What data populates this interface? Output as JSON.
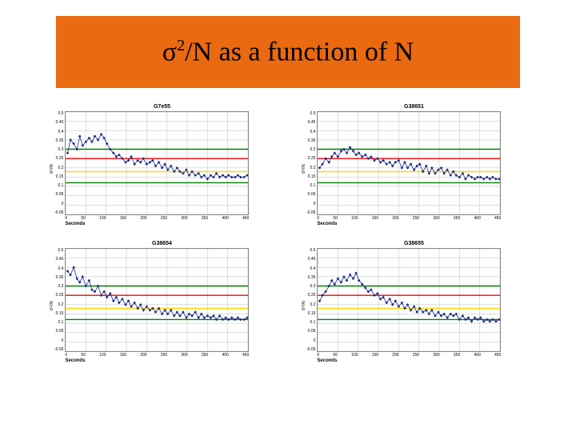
{
  "title": {
    "sigma": "σ",
    "exponent": "2",
    "rest": "/N as a function of N",
    "bg_color": "#e96a10"
  },
  "charts": [
    {
      "title": "G7e55",
      "type": "line",
      "xlabel": "Seconds",
      "ylabel": "σ²/N",
      "xlim": [
        0,
        450
      ],
      "ylim": [
        -0.05,
        0.5
      ],
      "xticks": [
        0,
        50,
        100,
        150,
        200,
        250,
        300,
        350,
        400,
        450
      ],
      "yticks": [
        -0.05,
        0,
        0.05,
        0.1,
        0.15,
        0.2,
        0.25,
        0.3,
        0.35,
        0.4,
        0.45,
        0.5
      ],
      "grid_color": "#bbbbbb",
      "background_color": "#ffffff",
      "hlines": [
        {
          "y": 0.3,
          "color": "#008000",
          "width": 1.5
        },
        {
          "y": 0.25,
          "color": "#ff0000",
          "width": 1.5
        },
        {
          "y": 0.18,
          "color": "#ffd700",
          "width": 1.5
        },
        {
          "y": 0.12,
          "color": "#008000",
          "width": 1.5
        }
      ],
      "series": {
        "color": "#1a2a8a",
        "marker_color": "#1a2a8a",
        "marker_size": 1.3,
        "line_width": 0.8,
        "data": [
          [
            5,
            0.28
          ],
          [
            12,
            0.35
          ],
          [
            20,
            0.33
          ],
          [
            28,
            0.3
          ],
          [
            35,
            0.37
          ],
          [
            42,
            0.32
          ],
          [
            50,
            0.34
          ],
          [
            58,
            0.36
          ],
          [
            65,
            0.34
          ],
          [
            72,
            0.37
          ],
          [
            80,
            0.35
          ],
          [
            88,
            0.38
          ],
          [
            95,
            0.36
          ],
          [
            102,
            0.33
          ],
          [
            110,
            0.3
          ],
          [
            118,
            0.28
          ],
          [
            125,
            0.26
          ],
          [
            132,
            0.27
          ],
          [
            140,
            0.25
          ],
          [
            148,
            0.23
          ],
          [
            155,
            0.24
          ],
          [
            162,
            0.26
          ],
          [
            170,
            0.22
          ],
          [
            178,
            0.24
          ],
          [
            185,
            0.23
          ],
          [
            192,
            0.25
          ],
          [
            200,
            0.22
          ],
          [
            208,
            0.23
          ],
          [
            215,
            0.24
          ],
          [
            222,
            0.21
          ],
          [
            230,
            0.23
          ],
          [
            238,
            0.2
          ],
          [
            245,
            0.22
          ],
          [
            252,
            0.19
          ],
          [
            260,
            0.21
          ],
          [
            268,
            0.18
          ],
          [
            275,
            0.2
          ],
          [
            282,
            0.18
          ],
          [
            290,
            0.17
          ],
          [
            298,
            0.19
          ],
          [
            305,
            0.16
          ],
          [
            312,
            0.18
          ],
          [
            320,
            0.16
          ],
          [
            328,
            0.17
          ],
          [
            335,
            0.15
          ],
          [
            342,
            0.16
          ],
          [
            350,
            0.14
          ],
          [
            358,
            0.16
          ],
          [
            365,
            0.15
          ],
          [
            372,
            0.17
          ],
          [
            380,
            0.15
          ],
          [
            388,
            0.16
          ],
          [
            395,
            0.15
          ],
          [
            402,
            0.16
          ],
          [
            410,
            0.15
          ],
          [
            418,
            0.15
          ],
          [
            425,
            0.16
          ],
          [
            432,
            0.15
          ],
          [
            440,
            0.15
          ],
          [
            448,
            0.16
          ]
        ]
      }
    },
    {
      "title": "G38651",
      "type": "line",
      "xlabel": "Seconds",
      "ylabel": "σ²/N",
      "xlim": [
        0,
        450
      ],
      "ylim": [
        -0.05,
        0.5
      ],
      "xticks": [
        0,
        50,
        100,
        150,
        200,
        250,
        300,
        350,
        400,
        450
      ],
      "yticks": [
        -0.05,
        0,
        0.05,
        0.1,
        0.15,
        0.2,
        0.25,
        0.3,
        0.35,
        0.4,
        0.45,
        0.5
      ],
      "grid_color": "#bbbbbb",
      "background_color": "#ffffff",
      "hlines": [
        {
          "y": 0.3,
          "color": "#008000",
          "width": 1.5
        },
        {
          "y": 0.25,
          "color": "#ff0000",
          "width": 1.5
        },
        {
          "y": 0.18,
          "color": "#ffd700",
          "width": 1.5
        },
        {
          "y": 0.12,
          "color": "#008000",
          "width": 1.5
        }
      ],
      "series": {
        "color": "#1a2a8a",
        "marker_color": "#1a2a8a",
        "marker_size": 1.3,
        "line_width": 0.8,
        "data": [
          [
            5,
            0.2
          ],
          [
            12,
            0.22
          ],
          [
            20,
            0.25
          ],
          [
            28,
            0.23
          ],
          [
            35,
            0.26
          ],
          [
            42,
            0.28
          ],
          [
            50,
            0.26
          ],
          [
            58,
            0.29
          ],
          [
            65,
            0.3
          ],
          [
            72,
            0.28
          ],
          [
            80,
            0.31
          ],
          [
            88,
            0.29
          ],
          [
            95,
            0.27
          ],
          [
            102,
            0.28
          ],
          [
            110,
            0.26
          ],
          [
            118,
            0.27
          ],
          [
            125,
            0.25
          ],
          [
            132,
            0.26
          ],
          [
            140,
            0.24
          ],
          [
            148,
            0.25
          ],
          [
            155,
            0.23
          ],
          [
            162,
            0.24
          ],
          [
            170,
            0.22
          ],
          [
            178,
            0.23
          ],
          [
            185,
            0.21
          ],
          [
            192,
            0.23
          ],
          [
            200,
            0.24
          ],
          [
            208,
            0.2
          ],
          [
            215,
            0.23
          ],
          [
            222,
            0.2
          ],
          [
            230,
            0.22
          ],
          [
            238,
            0.19
          ],
          [
            245,
            0.21
          ],
          [
            252,
            0.22
          ],
          [
            260,
            0.18
          ],
          [
            268,
            0.21
          ],
          [
            275,
            0.17
          ],
          [
            282,
            0.2
          ],
          [
            290,
            0.17
          ],
          [
            298,
            0.19
          ],
          [
            305,
            0.2
          ],
          [
            312,
            0.17
          ],
          [
            320,
            0.19
          ],
          [
            328,
            0.16
          ],
          [
            335,
            0.18
          ],
          [
            342,
            0.16
          ],
          [
            350,
            0.15
          ],
          [
            358,
            0.17
          ],
          [
            365,
            0.14
          ],
          [
            372,
            0.16
          ],
          [
            380,
            0.15
          ],
          [
            388,
            0.14
          ],
          [
            395,
            0.15
          ],
          [
            402,
            0.15
          ],
          [
            410,
            0.14
          ],
          [
            418,
            0.15
          ],
          [
            425,
            0.14
          ],
          [
            432,
            0.15
          ],
          [
            440,
            0.14
          ],
          [
            448,
            0.14
          ]
        ]
      }
    },
    {
      "title": "G38654",
      "type": "line",
      "xlabel": "Seconds",
      "ylabel": "σ²/N",
      "xlim": [
        0,
        450
      ],
      "ylim": [
        -0.05,
        0.5
      ],
      "xticks": [
        0,
        50,
        100,
        150,
        200,
        250,
        300,
        350,
        400,
        450
      ],
      "yticks": [
        -0.05,
        0,
        0.05,
        0.1,
        0.15,
        0.2,
        0.25,
        0.3,
        0.35,
        0.4,
        0.45,
        0.5
      ],
      "grid_color": "#bbbbbb",
      "background_color": "#ffffff",
      "hlines": [
        {
          "y": 0.3,
          "color": "#008000",
          "width": 1.5
        },
        {
          "y": 0.25,
          "color": "#ff0000",
          "width": 1.5
        },
        {
          "y": 0.18,
          "color": "#ffd700",
          "width": 1.5
        },
        {
          "y": 0.12,
          "color": "#008000",
          "width": 1.5
        }
      ],
      "series": {
        "color": "#1a2a8a",
        "marker_color": "#1a2a8a",
        "marker_size": 1.3,
        "line_width": 0.8,
        "data": [
          [
            5,
            0.38
          ],
          [
            12,
            0.36
          ],
          [
            20,
            0.4
          ],
          [
            28,
            0.34
          ],
          [
            35,
            0.32
          ],
          [
            42,
            0.35
          ],
          [
            50,
            0.3
          ],
          [
            58,
            0.33
          ],
          [
            65,
            0.28
          ],
          [
            72,
            0.27
          ],
          [
            80,
            0.3
          ],
          [
            88,
            0.25
          ],
          [
            95,
            0.27
          ],
          [
            102,
            0.24
          ],
          [
            110,
            0.26
          ],
          [
            118,
            0.22
          ],
          [
            125,
            0.24
          ],
          [
            132,
            0.21
          ],
          [
            140,
            0.23
          ],
          [
            148,
            0.2
          ],
          [
            155,
            0.22
          ],
          [
            162,
            0.19
          ],
          [
            170,
            0.21
          ],
          [
            178,
            0.18
          ],
          [
            185,
            0.2
          ],
          [
            192,
            0.17
          ],
          [
            200,
            0.19
          ],
          [
            208,
            0.17
          ],
          [
            215,
            0.18
          ],
          [
            222,
            0.16
          ],
          [
            230,
            0.18
          ],
          [
            238,
            0.15
          ],
          [
            245,
            0.17
          ],
          [
            252,
            0.15
          ],
          [
            260,
            0.17
          ],
          [
            268,
            0.14
          ],
          [
            275,
            0.16
          ],
          [
            282,
            0.14
          ],
          [
            290,
            0.16
          ],
          [
            298,
            0.13
          ],
          [
            305,
            0.15
          ],
          [
            312,
            0.14
          ],
          [
            320,
            0.16
          ],
          [
            328,
            0.13
          ],
          [
            335,
            0.15
          ],
          [
            342,
            0.13
          ],
          [
            350,
            0.14
          ],
          [
            358,
            0.13
          ],
          [
            365,
            0.14
          ],
          [
            372,
            0.12
          ],
          [
            380,
            0.14
          ],
          [
            388,
            0.12
          ],
          [
            395,
            0.13
          ],
          [
            402,
            0.12
          ],
          [
            410,
            0.13
          ],
          [
            418,
            0.12
          ],
          [
            425,
            0.13
          ],
          [
            432,
            0.12
          ],
          [
            440,
            0.12
          ],
          [
            448,
            0.13
          ]
        ]
      }
    },
    {
      "title": "G38655",
      "type": "line",
      "xlabel": "Seconds",
      "ylabel": "σ²/N",
      "xlim": [
        0,
        450
      ],
      "ylim": [
        -0.05,
        0.5
      ],
      "xticks": [
        0,
        50,
        100,
        150,
        200,
        250,
        300,
        350,
        400,
        450
      ],
      "yticks": [
        -0.05,
        0,
        0.05,
        0.1,
        0.15,
        0.2,
        0.25,
        0.3,
        0.35,
        0.4,
        0.45,
        0.5
      ],
      "grid_color": "#bbbbbb",
      "background_color": "#ffffff",
      "hlines": [
        {
          "y": 0.3,
          "color": "#008000",
          "width": 1.5
        },
        {
          "y": 0.25,
          "color": "#ff0000",
          "width": 1.5
        },
        {
          "y": 0.18,
          "color": "#ffd700",
          "width": 1.5
        },
        {
          "y": 0.12,
          "color": "#008000",
          "width": 1.5
        }
      ],
      "series": {
        "color": "#1a2a8a",
        "marker_color": "#1a2a8a",
        "marker_size": 1.3,
        "line_width": 0.8,
        "data": [
          [
            5,
            0.22
          ],
          [
            12,
            0.25
          ],
          [
            20,
            0.27
          ],
          [
            28,
            0.3
          ],
          [
            35,
            0.33
          ],
          [
            42,
            0.31
          ],
          [
            50,
            0.34
          ],
          [
            58,
            0.32
          ],
          [
            65,
            0.35
          ],
          [
            72,
            0.33
          ],
          [
            80,
            0.36
          ],
          [
            88,
            0.34
          ],
          [
            95,
            0.37
          ],
          [
            102,
            0.33
          ],
          [
            110,
            0.31
          ],
          [
            118,
            0.29
          ],
          [
            125,
            0.27
          ],
          [
            132,
            0.28
          ],
          [
            140,
            0.25
          ],
          [
            148,
            0.26
          ],
          [
            155,
            0.23
          ],
          [
            162,
            0.24
          ],
          [
            170,
            0.21
          ],
          [
            178,
            0.23
          ],
          [
            185,
            0.2
          ],
          [
            192,
            0.22
          ],
          [
            200,
            0.19
          ],
          [
            208,
            0.21
          ],
          [
            215,
            0.18
          ],
          [
            222,
            0.2
          ],
          [
            230,
            0.17
          ],
          [
            238,
            0.19
          ],
          [
            245,
            0.16
          ],
          [
            252,
            0.18
          ],
          [
            260,
            0.16
          ],
          [
            268,
            0.17
          ],
          [
            275,
            0.15
          ],
          [
            282,
            0.17
          ],
          [
            290,
            0.14
          ],
          [
            298,
            0.16
          ],
          [
            305,
            0.14
          ],
          [
            312,
            0.15
          ],
          [
            320,
            0.13
          ],
          [
            328,
            0.15
          ],
          [
            335,
            0.14
          ],
          [
            342,
            0.15
          ],
          [
            350,
            0.12
          ],
          [
            358,
            0.14
          ],
          [
            365,
            0.12
          ],
          [
            372,
            0.13
          ],
          [
            380,
            0.11
          ],
          [
            388,
            0.13
          ],
          [
            395,
            0.12
          ],
          [
            402,
            0.13
          ],
          [
            410,
            0.11
          ],
          [
            418,
            0.12
          ],
          [
            425,
            0.11
          ],
          [
            432,
            0.12
          ],
          [
            440,
            0.11
          ],
          [
            448,
            0.12
          ]
        ]
      }
    }
  ]
}
